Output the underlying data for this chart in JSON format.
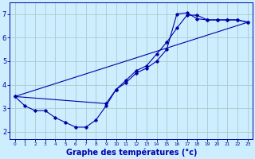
{
  "background_color": "#cceeff",
  "grid_color": "#aacccc",
  "line_color": "#0000aa",
  "marker_color": "#0000aa",
  "xlabel": "Graphe des températures (°c)",
  "xlabel_fontsize": 7,
  "xlim": [
    -0.5,
    23.5
  ],
  "ylim": [
    1.7,
    7.5
  ],
  "yticks": [
    2,
    3,
    4,
    5,
    6,
    7
  ],
  "xticks": [
    0,
    1,
    2,
    3,
    4,
    5,
    6,
    7,
    8,
    9,
    10,
    11,
    12,
    13,
    14,
    15,
    16,
    17,
    18,
    19,
    20,
    21,
    22,
    23
  ],
  "xtick_labels": [
    "0",
    "1",
    "2",
    "3",
    "4",
    "5",
    "6",
    "7",
    "8",
    "9",
    "10",
    "11",
    "12",
    "13",
    "14",
    "15",
    "16",
    "17",
    "18",
    "19",
    "20",
    "21",
    "22",
    "23"
  ],
  "curve1_x": [
    0,
    1,
    2,
    3,
    4,
    5,
    6,
    7,
    8,
    9,
    10,
    11,
    12,
    13,
    14,
    15,
    16,
    17,
    18,
    19,
    20,
    21,
    22,
    23
  ],
  "curve1_y": [
    3.5,
    3.1,
    2.9,
    2.9,
    2.6,
    2.4,
    2.2,
    2.2,
    2.5,
    3.1,
    3.8,
    4.2,
    4.6,
    4.8,
    5.3,
    5.8,
    6.4,
    6.95,
    6.95,
    6.75,
    6.75,
    6.75,
    6.75,
    6.65
  ],
  "curve2_x": [
    0,
    9,
    10,
    11,
    12,
    13,
    14,
    15,
    16,
    17,
    18,
    19,
    20,
    21,
    22,
    23
  ],
  "curve2_y": [
    3.5,
    3.2,
    3.8,
    4.1,
    4.5,
    4.7,
    5.0,
    5.5,
    7.0,
    7.05,
    6.8,
    6.75,
    6.75,
    6.75,
    6.75,
    6.65
  ],
  "curve3_x": [
    0,
    23
  ],
  "curve3_y": [
    3.5,
    6.65
  ]
}
